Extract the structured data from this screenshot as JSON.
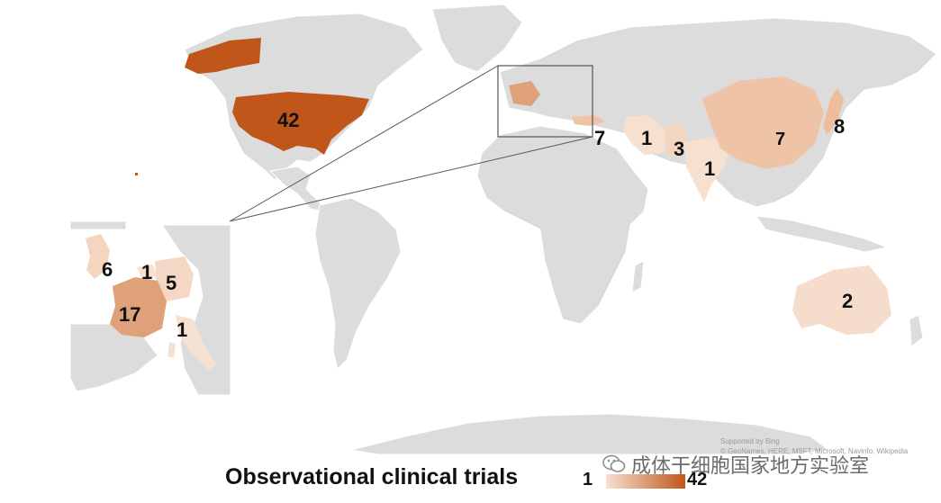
{
  "legend": {
    "title": "Observational clinical trials",
    "min_label": "1",
    "max_label": "42",
    "color_min": "#f8e0d0",
    "color_max": "#c0561a"
  },
  "credit": {
    "line1": "Supported by Bing",
    "line2": "© GeoNames, HERE, MSFT, Microsoft, Navinfo, Wikipedia"
  },
  "watermark": {
    "text": "成体干细胞国家地方实验室",
    "icon": "wechat-icon"
  },
  "countries": [
    {
      "name": "United States",
      "value": 42,
      "label": "42"
    },
    {
      "name": "Turkey",
      "value": 7,
      "label": "7"
    },
    {
      "name": "Iran",
      "value": 1,
      "label": "1"
    },
    {
      "name": "Pakistan",
      "value": 3,
      "label": "3"
    },
    {
      "name": "India",
      "value": 1,
      "label": "1"
    },
    {
      "name": "China",
      "value": 7,
      "label": "7"
    },
    {
      "name": "Japan",
      "value": 8,
      "label": "8"
    },
    {
      "name": "Australia",
      "value": 2,
      "label": "2"
    },
    {
      "name": "United Kingdom",
      "value": 6,
      "label": "6"
    },
    {
      "name": "Belgium",
      "value": 1,
      "label": "1"
    },
    {
      "name": "Germany",
      "value": 5,
      "label": "5"
    },
    {
      "name": "France",
      "value": 17,
      "label": "17"
    },
    {
      "name": "Italy",
      "value": 1,
      "label": "1"
    }
  ]
}
